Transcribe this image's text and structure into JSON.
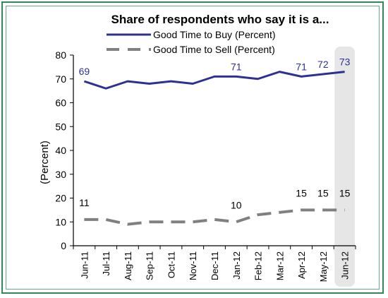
{
  "chart_data": {
    "type": "line",
    "title": "Share of respondents who say it is a...",
    "ylabel": "(Percent)",
    "xlabel": "",
    "ylim": [
      0,
      80
    ],
    "yticks": [
      0,
      10,
      20,
      30,
      40,
      50,
      60,
      70,
      80
    ],
    "categories": [
      "Jun-11",
      "Jul-11",
      "Aug-11",
      "Sep-11",
      "Oct-11",
      "Nov-11",
      "Dec-11",
      "Jan-12",
      "Feb-12",
      "Mar-12",
      "Apr-12",
      "May-12",
      "Jun-12"
    ],
    "highlight_category": "Jun-12",
    "legend_position": "top",
    "series": [
      {
        "name": "Good Time to Buy (Percent)",
        "color": "#2e3192",
        "style": "solid",
        "values": [
          69,
          66,
          69,
          68,
          69,
          68,
          71,
          71,
          70,
          73,
          71,
          72,
          73
        ],
        "labels": [
          {
            "index": 0,
            "text": "69"
          },
          {
            "index": 7,
            "text": "71"
          },
          {
            "index": 10,
            "text": "71"
          },
          {
            "index": 11,
            "text": "72"
          },
          {
            "index": 12,
            "text": "73"
          }
        ]
      },
      {
        "name": "Good Time to Sell (Percent)",
        "color": "#808080",
        "style": "dashed",
        "values": [
          11,
          11,
          9,
          10,
          10,
          10,
          11,
          10,
          13,
          14,
          15,
          15,
          15
        ],
        "labels": [
          {
            "index": 0,
            "text": "11"
          },
          {
            "index": 7,
            "text": "10"
          },
          {
            "index": 10,
            "text": "15"
          },
          {
            "index": 11,
            "text": "15"
          },
          {
            "index": 12,
            "text": "15"
          }
        ]
      }
    ]
  }
}
